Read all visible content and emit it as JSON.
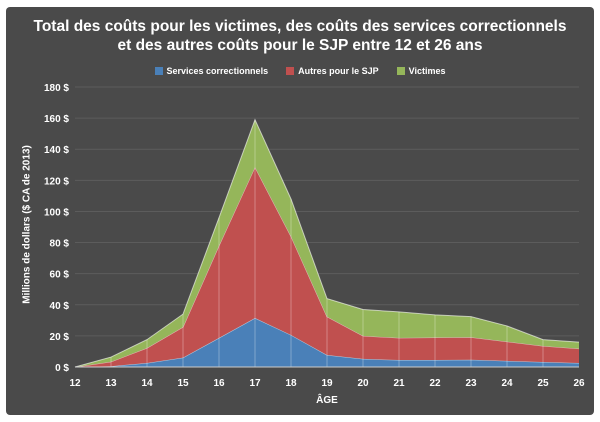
{
  "chart_data": {
    "type": "area",
    "stacked": true,
    "title_line1": "Total des coûts pour les victimes, des coûts des services correctionnels",
    "title_line2": "et des autres coûts pour le SJP entre 12 et 26 ans",
    "xlabel": "ÂGE",
    "ylabel": "Millions de dollars ($ CA de 2013)",
    "x": [
      12,
      13,
      14,
      15,
      16,
      17,
      18,
      19,
      20,
      21,
      22,
      23,
      24,
      25,
      26
    ],
    "ylim": [
      0,
      180
    ],
    "yticks": [
      0,
      20,
      40,
      60,
      80,
      100,
      120,
      140,
      160,
      180
    ],
    "ytick_labels": [
      "0 $",
      "20 $",
      "40 $",
      "60 $",
      "80 $",
      "100 $",
      "120 $",
      "140 $",
      "160 $",
      "180 $"
    ],
    "grid": true,
    "legend": "top-center",
    "series": [
      {
        "name": "Services correctionnels",
        "color": "#4a80b8",
        "values": [
          0,
          0.5,
          2.6,
          6,
          18.7,
          31.5,
          20.6,
          7.7,
          5.2,
          4.5,
          4.5,
          4.7,
          3.9,
          3.2,
          2.6
        ]
      },
      {
        "name": "Autres pour le SJP",
        "color": "#c0504f",
        "values": [
          0,
          2.9,
          9.6,
          19.7,
          59.3,
          97,
          63.4,
          24.7,
          14.8,
          14.2,
          14.5,
          14.4,
          12.4,
          10.3,
          9.2
        ]
      },
      {
        "name": "Victimes",
        "color": "#95b65a",
        "values": [
          0,
          3,
          5.4,
          8.3,
          18,
          30.5,
          24,
          11.6,
          17,
          16.7,
          14.5,
          13.3,
          10.1,
          4.1,
          4.2
        ]
      }
    ]
  }
}
